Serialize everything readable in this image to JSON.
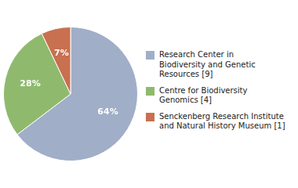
{
  "chart_data": {
    "type": "pie",
    "categories": [
      "Research Center in\nBiodiversity and Genetic\nResources [9]",
      "Centre for Biodiversity\nGenomics [4]",
      "Senckenberg Research Institute\nand Natural History Museum [1]"
    ],
    "values": [
      64,
      28,
      7
    ],
    "value_labels": [
      "64%",
      "28%",
      "7%"
    ],
    "colors": [
      "#a0aec8",
      "#8fba6e",
      "#c87050"
    ],
    "data_labels": true,
    "legend": "right"
  }
}
